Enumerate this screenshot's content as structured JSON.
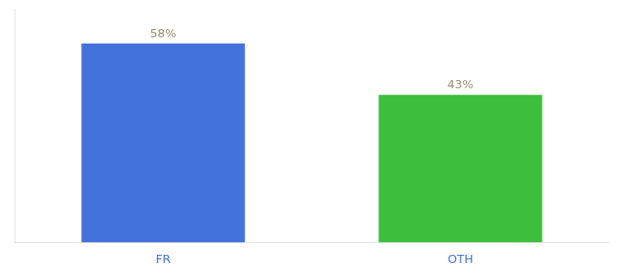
{
  "chart_data": {
    "type": "bar",
    "categories": [
      "FR",
      "OTH"
    ],
    "values": [
      58,
      43
    ],
    "value_labels": [
      "58%",
      "43%"
    ],
    "colors": [
      "#4472db",
      "#3dbe3d"
    ],
    "ylim": [
      0,
      68
    ],
    "yticks": [],
    "grid": false,
    "data_labels": true,
    "tick_labels": "x"
  }
}
